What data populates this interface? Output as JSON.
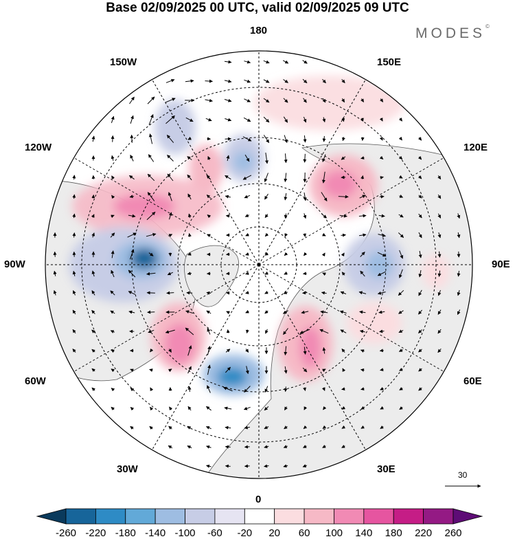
{
  "title": "Base 02/09/2025 00 UTC, valid 02/09/2025 09 UTC",
  "brand": "MODES",
  "brand_mark": "©",
  "map": {
    "projection": "north-polar-stereographic",
    "longitude_labels": {
      "top": "180",
      "top_left": "150W",
      "top_right": "150E",
      "upper_left": "120W",
      "upper_right": "120E",
      "left": "90W",
      "right": "90E",
      "lower_left": "60W",
      "lower_right": "60E",
      "bottom_left": "30W",
      "bottom_right": "30E",
      "bottom": "0"
    },
    "vector_reference": "30"
  },
  "colorbar": {
    "labels": [
      "-260",
      "-220",
      "-180",
      "-140",
      "-100",
      "-60",
      "-20",
      "20",
      "60",
      "100",
      "140",
      "180",
      "220",
      "260"
    ],
    "colors": [
      "#0a3a5c",
      "#17659a",
      "#2e8bc5",
      "#62a9d8",
      "#9ebde2",
      "#c7cde6",
      "#e6e4f2",
      "#ffffff",
      "#fbdde0",
      "#f6b9c6",
      "#f18ab4",
      "#e655a0",
      "#c51d86",
      "#941a84",
      "#5e0c76"
    ]
  }
}
